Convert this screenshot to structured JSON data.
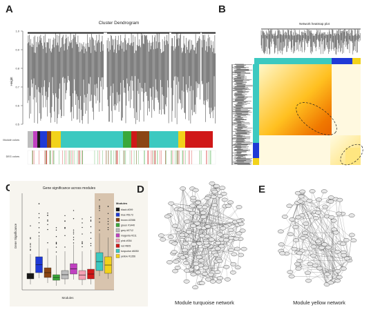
{
  "panels": {
    "A": {
      "letter": "A",
      "title": "Cluster Dendrogram",
      "ylabel": "Height",
      "ticks": [
        "1.0",
        "0.9",
        "0.8",
        "0.7",
        "0.6",
        "0.5"
      ],
      "row_labels": [
        "Module colors",
        "DEG colors"
      ]
    },
    "B": {
      "letter": "B",
      "title": "Network heatmap plot"
    },
    "C": {
      "letter": "C",
      "title": "Gene significance across modules",
      "ylabel": "Gene Significance",
      "xlabel": "Modules",
      "legend_title": "Modules",
      "legend": [
        {
          "label": "black #099",
          "color": "#1a1a1a"
        },
        {
          "label": "blue #5173",
          "color": "#1f3ad6"
        },
        {
          "label": "brown #2086",
          "color": "#8b4513"
        },
        {
          "label": "green #1440",
          "color": "#3aa83a"
        },
        {
          "label": "grey #0712",
          "color": "#bdbdbd"
        },
        {
          "label": "magenta #211",
          "color": "#c040c0"
        },
        {
          "label": "pink #054",
          "color": "#f4a0b4"
        },
        {
          "label": "red #805",
          "color": "#d01818"
        },
        {
          "label": "turquoise #6050",
          "color": "#3cc9c0"
        },
        {
          "label": "yellow #1356",
          "color": "#f2d21a"
        }
      ]
    },
    "D": {
      "letter": "D",
      "caption": "Module turquoise network"
    },
    "E": {
      "letter": "E",
      "caption": "Module yellow network"
    }
  },
  "module_color_strip": [
    "#bdbdbd",
    "#c040c0",
    "#1a1a1a",
    "#1f3ad6",
    "#8b4513",
    "#f2d21a",
    "#3cc9c0",
    "#3cc9c0",
    "#3cc9c0",
    "#3aa83a",
    "#d01818",
    "#8b4513",
    "#3cc9c0",
    "#f2d21a",
    "#d01818"
  ]
}
